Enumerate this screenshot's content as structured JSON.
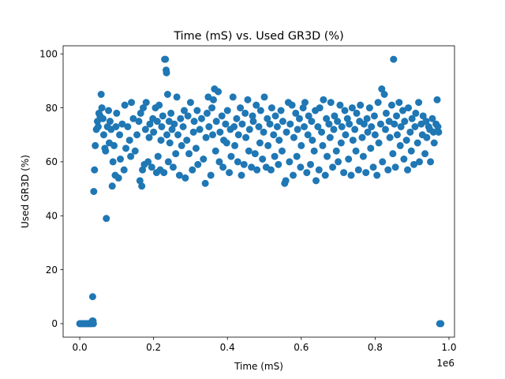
{
  "chart_data": {
    "type": "scatter",
    "title": "Time (mS) vs. Used GR3D (%)",
    "xlabel": "Time (mS)",
    "ylabel": "Used GR3D (%)",
    "x_offset_label": "1e6",
    "x_scale": 1000000,
    "xlim": [
      -45000,
      1015000
    ],
    "ylim": [
      -5,
      103
    ],
    "xticks": [
      0,
      200000,
      400000,
      600000,
      800000,
      1000000
    ],
    "xtick_labels": [
      "0.0",
      "0.2",
      "0.4",
      "0.6",
      "0.8",
      "1.0"
    ],
    "yticks": [
      0,
      20,
      40,
      60,
      80,
      100
    ],
    "ytick_labels": [
      "0",
      "20",
      "40",
      "60",
      "80",
      "100"
    ],
    "grid": false,
    "marker_color": "#1f77b4",
    "series": [
      {
        "points": [
          [
            0,
            0
          ],
          [
            4000,
            0
          ],
          [
            8000,
            0
          ],
          [
            12000,
            0
          ],
          [
            16000,
            0
          ],
          [
            20000,
            0
          ],
          [
            24000,
            0
          ],
          [
            28000,
            0
          ],
          [
            31000,
            0
          ],
          [
            34000,
            1
          ],
          [
            37000,
            0
          ],
          [
            35000,
            10
          ],
          [
            36000,
            1
          ],
          [
            38000,
            49
          ],
          [
            40000,
            57
          ],
          [
            42000,
            66
          ],
          [
            45000,
            72
          ],
          [
            48000,
            75
          ],
          [
            50000,
            73
          ],
          [
            52000,
            78
          ],
          [
            55000,
            77
          ],
          [
            58000,
            85
          ],
          [
            60000,
            80
          ],
          [
            63000,
            76
          ],
          [
            65000,
            70
          ],
          [
            68000,
            65
          ],
          [
            70000,
            64
          ],
          [
            72000,
            39
          ],
          [
            75000,
            73
          ],
          [
            78000,
            79
          ],
          [
            80000,
            67
          ],
          [
            82000,
            75
          ],
          [
            85000,
            72
          ],
          [
            88000,
            51
          ],
          [
            90000,
            60
          ],
          [
            93000,
            66
          ],
          [
            96000,
            55
          ],
          [
            98000,
            73
          ],
          [
            100000,
            78
          ],
          [
            105000,
            54
          ],
          [
            108000,
            70
          ],
          [
            110000,
            61
          ],
          [
            115000,
            74
          ],
          [
            120000,
            57
          ],
          [
            122000,
            81
          ],
          [
            125000,
            65
          ],
          [
            130000,
            73
          ],
          [
            135000,
            68
          ],
          [
            138000,
            62
          ],
          [
            140000,
            82
          ],
          [
            145000,
            76
          ],
          [
            150000,
            64
          ],
          [
            155000,
            70
          ],
          [
            160000,
            75
          ],
          [
            163000,
            53
          ],
          [
            165000,
            78
          ],
          [
            168000,
            51
          ],
          [
            170000,
            57
          ],
          [
            172000,
            80
          ],
          [
            175000,
            59
          ],
          [
            178000,
            72
          ],
          [
            180000,
            82
          ],
          [
            185000,
            60
          ],
          [
            188000,
            69
          ],
          [
            190000,
            74
          ],
          [
            195000,
            58
          ],
          [
            198000,
            76
          ],
          [
            200000,
            71
          ],
          [
            205000,
            80
          ],
          [
            208000,
            56
          ],
          [
            210000,
            75
          ],
          [
            212000,
            62
          ],
          [
            215000,
            81
          ],
          [
            218000,
            57
          ],
          [
            220000,
            68
          ],
          [
            222000,
            73
          ],
          [
            225000,
            77
          ],
          [
            228000,
            56
          ],
          [
            230000,
            98
          ],
          [
            232000,
            98
          ],
          [
            234000,
            94
          ],
          [
            235000,
            93
          ],
          [
            236000,
            70
          ],
          [
            238000,
            85
          ],
          [
            240000,
            60
          ],
          [
            242000,
            75
          ],
          [
            244000,
            67
          ],
          [
            247000,
            78
          ],
          [
            250000,
            72
          ],
          [
            253000,
            58
          ],
          [
            256000,
            74
          ],
          [
            260000,
            63
          ],
          [
            263000,
            84
          ],
          [
            266000,
            70
          ],
          [
            270000,
            55
          ],
          [
            273000,
            76
          ],
          [
            276000,
            66
          ],
          [
            280000,
            73
          ],
          [
            283000,
            79
          ],
          [
            286000,
            54
          ],
          [
            290000,
            68
          ],
          [
            293000,
            77
          ],
          [
            296000,
            63
          ],
          [
            300000,
            82
          ],
          [
            305000,
            57
          ],
          [
            308000,
            71
          ],
          [
            310000,
            75
          ],
          [
            315000,
            65
          ],
          [
            318000,
            79
          ],
          [
            320000,
            59
          ],
          [
            325000,
            72
          ],
          [
            330000,
            76
          ],
          [
            335000,
            61
          ],
          [
            340000,
            52
          ],
          [
            342000,
            69
          ],
          [
            345000,
            78
          ],
          [
            348000,
            84
          ],
          [
            350000,
            73
          ],
          [
            355000,
            55
          ],
          [
            358000,
            80
          ],
          [
            360000,
            70
          ],
          [
            362000,
            83
          ],
          [
            365000,
            87
          ],
          [
            368000,
            64
          ],
          [
            370000,
            75
          ],
          [
            375000,
            86
          ],
          [
            378000,
            60
          ],
          [
            380000,
            71
          ],
          [
            385000,
            77
          ],
          [
            388000,
            58
          ],
          [
            390000,
            68
          ],
          [
            395000,
            74
          ],
          [
            398000,
            67
          ],
          [
            400000,
            79
          ],
          [
            405000,
            56
          ],
          [
            408000,
            72
          ],
          [
            410000,
            62
          ],
          [
            415000,
            84
          ],
          [
            418000,
            73
          ],
          [
            420000,
            66
          ],
          [
            425000,
            76
          ],
          [
            428000,
            60
          ],
          [
            430000,
            70
          ],
          [
            435000,
            80
          ],
          [
            438000,
            55
          ],
          [
            440000,
            74
          ],
          [
            445000,
            59
          ],
          [
            448000,
            78
          ],
          [
            450000,
            69
          ],
          [
            455000,
            83
          ],
          [
            458000,
            64
          ],
          [
            460000,
            72
          ],
          [
            465000,
            58
          ],
          [
            468000,
            77
          ],
          [
            470000,
            75
          ],
          [
            475000,
            63
          ],
          [
            478000,
            81
          ],
          [
            480000,
            57
          ],
          [
            485000,
            73
          ],
          [
            488000,
            67
          ],
          [
            490000,
            79
          ],
          [
            495000,
            61
          ],
          [
            498000,
            71
          ],
          [
            500000,
            84
          ],
          [
            505000,
            58
          ],
          [
            508000,
            76
          ],
          [
            510000,
            66
          ],
          [
            515000,
            74
          ],
          [
            518000,
            57
          ],
          [
            520000,
            80
          ],
          [
            525000,
            70
          ],
          [
            528000,
            62
          ],
          [
            530000,
            77
          ],
          [
            535000,
            73
          ],
          [
            538000,
            59
          ],
          [
            540000,
            68
          ],
          [
            545000,
            79
          ],
          [
            548000,
            64
          ],
          [
            550000,
            75
          ],
          [
            555000,
            52
          ],
          [
            558000,
            53
          ],
          [
            560000,
            71
          ],
          [
            565000,
            82
          ],
          [
            568000,
            60
          ],
          [
            570000,
            74
          ],
          [
            575000,
            81
          ],
          [
            578000,
            55
          ],
          [
            580000,
            69
          ],
          [
            585000,
            78
          ],
          [
            588000,
            62
          ],
          [
            590000,
            72
          ],
          [
            595000,
            76
          ],
          [
            598000,
            58
          ],
          [
            600000,
            66
          ],
          [
            605000,
            80
          ],
          [
            608000,
            73
          ],
          [
            610000,
            82
          ],
          [
            615000,
            56
          ],
          [
            618000,
            70
          ],
          [
            620000,
            77
          ],
          [
            625000,
            59
          ],
          [
            628000,
            75
          ],
          [
            630000,
            68
          ],
          [
            635000,
            64
          ],
          [
            638000,
            79
          ],
          [
            640000,
            53
          ],
          [
            645000,
            73
          ],
          [
            648000,
            57
          ],
          [
            650000,
            80
          ],
          [
            655000,
            71
          ],
          [
            658000,
            66
          ],
          [
            660000,
            83
          ],
          [
            665000,
            55
          ],
          [
            668000,
            76
          ],
          [
            670000,
            62
          ],
          [
            675000,
            74
          ],
          [
            678000,
            69
          ],
          [
            680000,
            82
          ],
          [
            685000,
            58
          ],
          [
            688000,
            72
          ],
          [
            690000,
            77
          ],
          [
            695000,
            64
          ],
          [
            698000,
            75
          ],
          [
            700000,
            60
          ],
          [
            705000,
            81
          ],
          [
            708000,
            67
          ],
          [
            710000,
            73
          ],
          [
            715000,
            56
          ],
          [
            718000,
            79
          ],
          [
            720000,
            70
          ],
          [
            725000,
            76
          ],
          [
            728000,
            61
          ],
          [
            730000,
            74
          ],
          [
            735000,
            55
          ],
          [
            738000,
            80
          ],
          [
            740000,
            68
          ],
          [
            745000,
            72
          ],
          [
            748000,
            64
          ],
          [
            750000,
            78
          ],
          [
            755000,
            57
          ],
          [
            758000,
            75
          ],
          [
            760000,
            81
          ],
          [
            765000,
            69
          ],
          [
            768000,
            62
          ],
          [
            770000,
            74
          ],
          [
            775000,
            56
          ],
          [
            778000,
            76
          ],
          [
            780000,
            71
          ],
          [
            785000,
            80
          ],
          [
            788000,
            65
          ],
          [
            790000,
            73
          ],
          [
            795000,
            58
          ],
          [
            798000,
            77
          ],
          [
            800000,
            70
          ],
          [
            805000,
            55
          ],
          [
            808000,
            82
          ],
          [
            810000,
            67
          ],
          [
            815000,
            74
          ],
          [
            818000,
            87
          ],
          [
            820000,
            60
          ],
          [
            825000,
            85
          ],
          [
            828000,
            72
          ],
          [
            830000,
            78
          ],
          [
            835000,
            57
          ],
          [
            838000,
            75
          ],
          [
            840000,
            69
          ],
          [
            845000,
            81
          ],
          [
            848000,
            63
          ],
          [
            850000,
            98
          ],
          [
            852000,
            74
          ],
          [
            855000,
            58
          ],
          [
            858000,
            77
          ],
          [
            860000,
            70
          ],
          [
            865000,
            82
          ],
          [
            868000,
            66
          ],
          [
            870000,
            73
          ],
          [
            875000,
            79
          ],
          [
            878000,
            61
          ],
          [
            880000,
            75
          ],
          [
            885000,
            68
          ],
          [
            888000,
            57
          ],
          [
            890000,
            80
          ],
          [
            895000,
            71
          ],
          [
            898000,
            64
          ],
          [
            900000,
            76
          ],
          [
            905000,
            59
          ],
          [
            908000,
            73
          ],
          [
            910000,
            78
          ],
          [
            915000,
            67
          ],
          [
            918000,
            82
          ],
          [
            920000,
            60
          ],
          [
            925000,
            74
          ],
          [
            928000,
            70
          ],
          [
            930000,
            77
          ],
          [
            935000,
            63
          ],
          [
            938000,
            75
          ],
          [
            940000,
            69
          ],
          [
            945000,
            73
          ],
          [
            948000,
            72
          ],
          [
            950000,
            60
          ],
          [
            955000,
            76
          ],
          [
            958000,
            71
          ],
          [
            960000,
            67
          ],
          [
            965000,
            74
          ],
          [
            968000,
            83
          ],
          [
            970000,
            73
          ],
          [
            972000,
            71
          ],
          [
            975000,
            0
          ],
          [
            978000,
            0
          ]
        ]
      }
    ]
  }
}
